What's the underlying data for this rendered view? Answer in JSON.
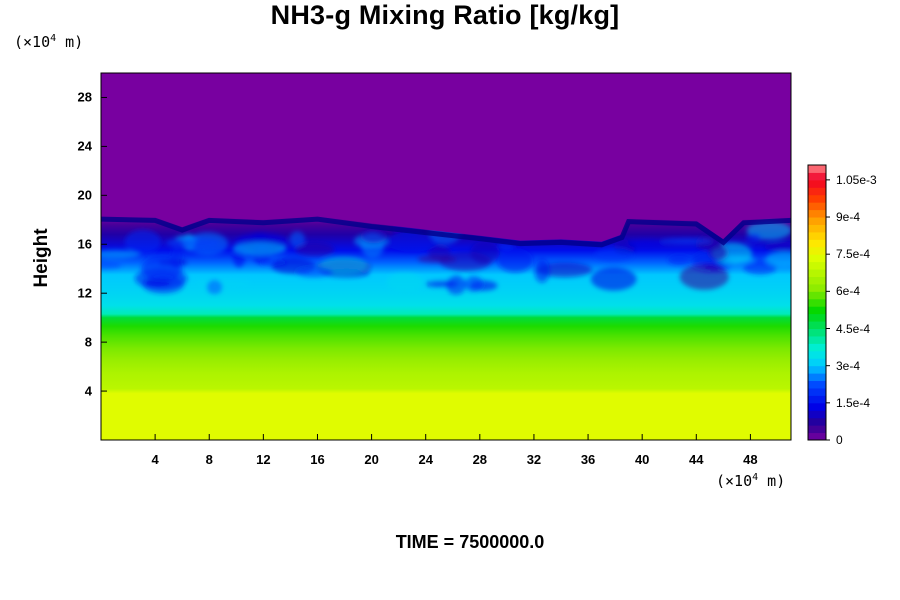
{
  "chart_data": {
    "type": "heatmap",
    "title": "NH3-g Mixing Ratio [kg/kg]",
    "ylabel": "Height",
    "xlabel": "",
    "y_unit": {
      "pre": "(×10",
      "exp": "4",
      "post": " m)"
    },
    "x_unit": {
      "pre": "(×10",
      "exp": "4",
      "post": " m)"
    },
    "xlim": [
      0,
      51
    ],
    "ylim": [
      0,
      30
    ],
    "x_ticks": [
      4,
      8,
      12,
      16,
      20,
      24,
      28,
      32,
      36,
      40,
      44,
      48
    ],
    "y_ticks": [
      4,
      8,
      12,
      16,
      20,
      24,
      28
    ],
    "colorbar": {
      "range": [
        0,
        0.00111
      ],
      "tick_values": [
        0,
        0.00015,
        0.0003,
        0.00045,
        0.0006,
        0.00075,
        0.0009,
        0.00105
      ],
      "tick_labels": [
        "0",
        "1.5e-4",
        "3e-4",
        "4.5e-4",
        "6e-4",
        "7.5e-4",
        "9e-4",
        "1.05e-3"
      ],
      "levels": 37
    },
    "profile": [
      {
        "height": 0,
        "value": 0.00074
      },
      {
        "height": 3.8,
        "value": 0.00074
      },
      {
        "height": 4.2,
        "value": 0.00068
      },
      {
        "height": 5.5,
        "value": 0.00066
      },
      {
        "height": 6.5,
        "value": 0.00063
      },
      {
        "height": 7.5,
        "value": 0.0006
      },
      {
        "height": 8.5,
        "value": 0.00057
      },
      {
        "height": 9.3,
        "value": 0.00054
      },
      {
        "height": 10.0,
        "value": 0.00048
      },
      {
        "height": 10.3,
        "value": 0.00039
      },
      {
        "height": 11.0,
        "value": 0.00034
      },
      {
        "height": 12.0,
        "value": 0.00032
      },
      {
        "height": 13.5,
        "value": 0.0003
      },
      {
        "height": 14.5,
        "value": 0.00024
      },
      {
        "height": 15.5,
        "value": 0.00015
      },
      {
        "height": 16.8,
        "value": 8e-05
      },
      {
        "height": 17.6,
        "value": 4e-05
      },
      {
        "height": 18.2,
        "value": 0
      },
      {
        "height": 30,
        "value": 0
      }
    ],
    "cloud_top": [
      {
        "x": 0,
        "height": 18.3
      },
      {
        "x": 4,
        "height": 18.2
      },
      {
        "x": 6,
        "height": 17.4
      },
      {
        "x": 8,
        "height": 18.2
      },
      {
        "x": 12,
        "height": 18.0
      },
      {
        "x": 16,
        "height": 18.3
      },
      {
        "x": 20,
        "height": 17.7
      },
      {
        "x": 24,
        "height": 17.2
      },
      {
        "x": 28,
        "height": 16.7
      },
      {
        "x": 31,
        "height": 16.3
      },
      {
        "x": 34,
        "height": 16.4
      },
      {
        "x": 37,
        "height": 16.2
      },
      {
        "x": 38.5,
        "height": 16.8
      },
      {
        "x": 39,
        "height": 18.1
      },
      {
        "x": 44,
        "height": 17.9
      },
      {
        "x": 46,
        "height": 16.4
      },
      {
        "x": 47.5,
        "height": 18.0
      },
      {
        "x": 51,
        "height": 18.2
      }
    ],
    "time_label": "TIME = 7500000.0"
  }
}
